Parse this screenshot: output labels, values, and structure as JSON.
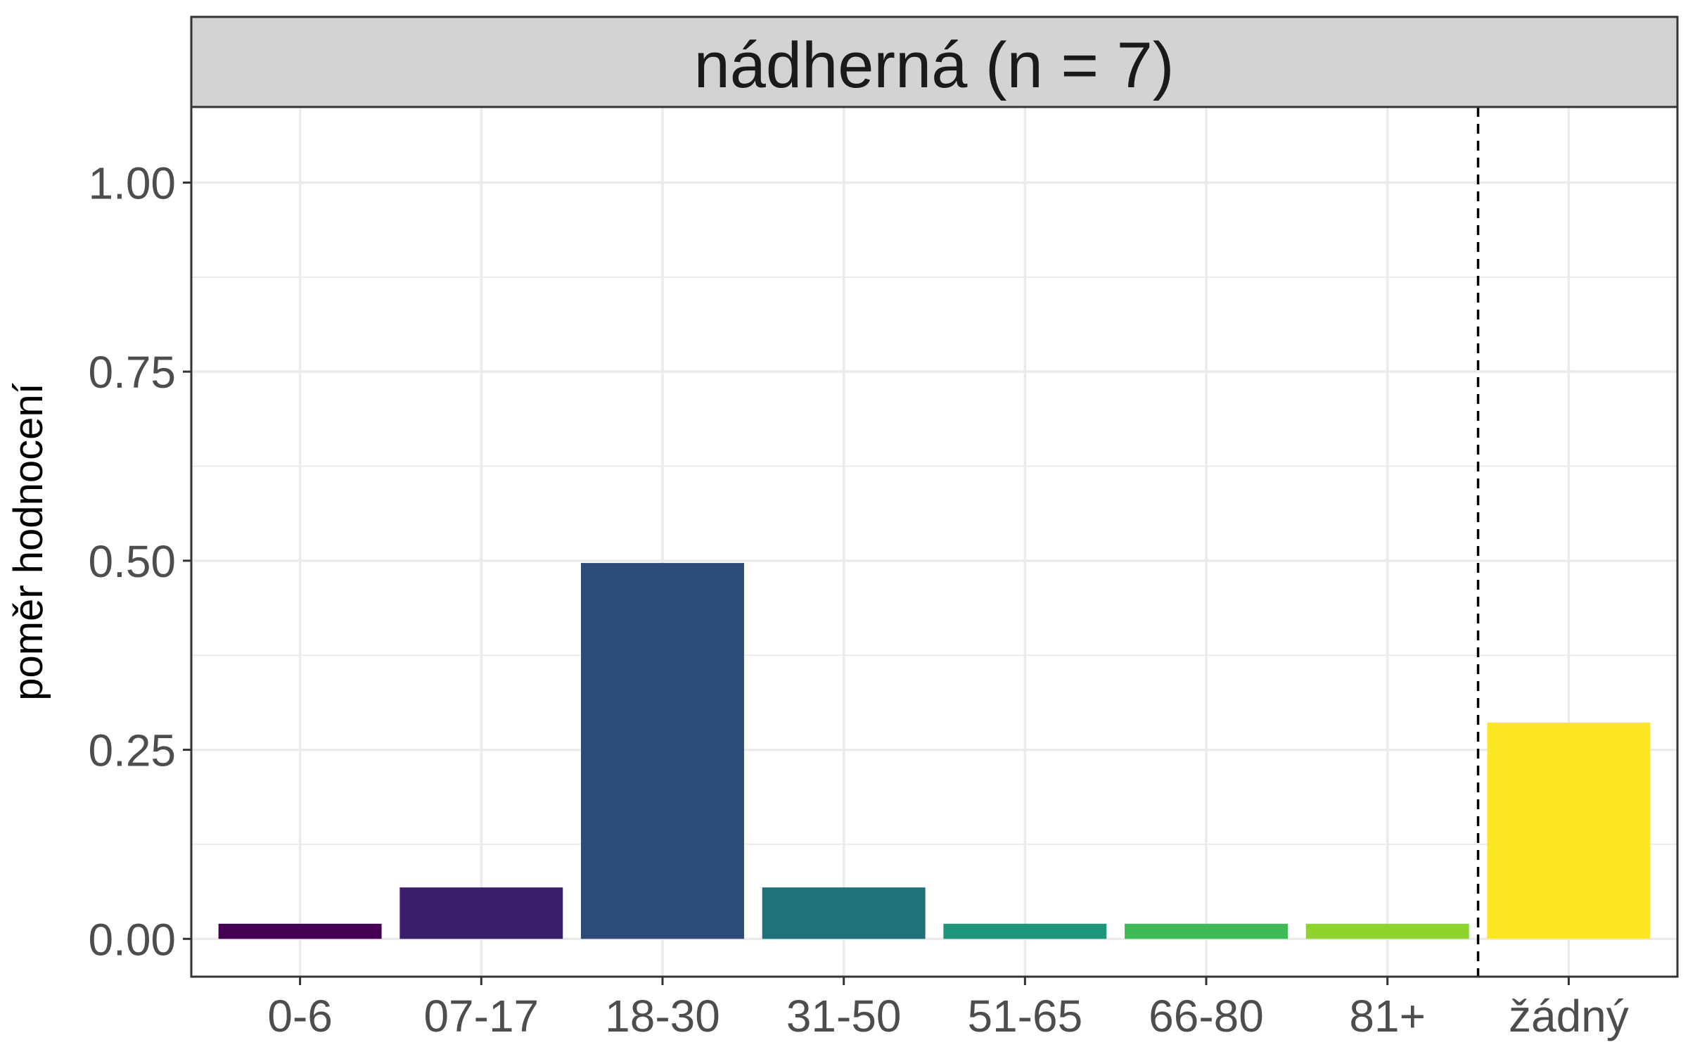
{
  "chart_data": {
    "type": "bar",
    "facet_title": "nádherná (n = 7)",
    "xlabel": "",
    "ylabel": "poměr hodnocení",
    "categories": [
      "0-6",
      "07-17",
      "18-30",
      "31-50",
      "51-65",
      "66-80",
      "81+",
      "žádný"
    ],
    "values": [
      0.02,
      0.068,
      0.497,
      0.068,
      0.02,
      0.02,
      0.02,
      0.286
    ],
    "colors": [
      "#440154",
      "#3B1F6B",
      "#2D4B79",
      "#21717A",
      "#1F957B",
      "#3EBA57",
      "#8FD42E",
      "#FDE724"
    ],
    "ylim": [
      -0.05,
      1.1
    ],
    "yticks": [
      0.0,
      0.25,
      0.5,
      0.75,
      1.0
    ],
    "ytick_labels": [
      "0.00",
      "0.25",
      "0.50",
      "0.75",
      "1.00"
    ],
    "reference_line": {
      "between": [
        "81+",
        "žádný"
      ],
      "style": "dashed",
      "color": "#000000"
    },
    "grid": true,
    "legend": "none",
    "colors_meta": {
      "panel_border": "#333333",
      "strip_fill": "#D3D3D3",
      "grid": "#EBEBEB"
    }
  }
}
